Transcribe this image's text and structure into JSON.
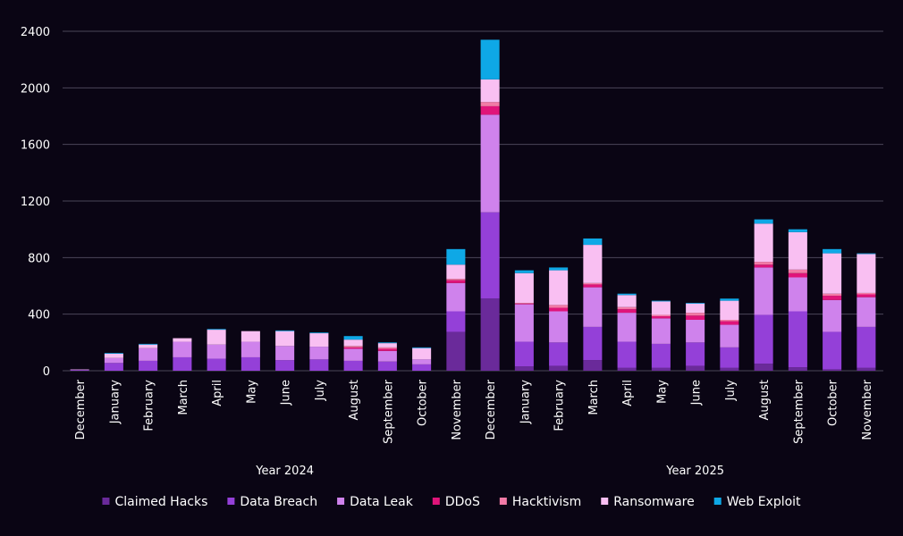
{
  "chart_data": {
    "type": "bar",
    "stacked": true,
    "title": "",
    "xlabel": "",
    "ylabel": "",
    "ylim": [
      0,
      2400
    ],
    "yticks": [
      0,
      400,
      800,
      1200,
      1600,
      2000,
      2400
    ],
    "grid": true,
    "legend_position": "bottom",
    "categories": [
      "December",
      "January",
      "February",
      "March",
      "April",
      "May",
      "June",
      "July",
      "August",
      "September",
      "October",
      "November",
      "December",
      "January",
      "February",
      "March",
      "April",
      "May",
      "June",
      "July",
      "August",
      "September",
      "October",
      "November"
    ],
    "groups": [
      {
        "label": "Year 2024",
        "from": 1,
        "to": 11
      },
      {
        "label": "Year 2025",
        "from": 13,
        "to": 23
      }
    ],
    "series": [
      {
        "name": "Claimed Hacks",
        "color": "#6a2a9a",
        "values": [
          0,
          0,
          0,
          0,
          0,
          0,
          0,
          0,
          0,
          0,
          0,
          275,
          510,
          30,
          35,
          75,
          20,
          20,
          35,
          20,
          50,
          25,
          10,
          20
        ]
      },
      {
        "name": "Data Breach",
        "color": "#9440d8",
        "values": [
          5,
          55,
          70,
          95,
          85,
          95,
          75,
          80,
          70,
          65,
          45,
          145,
          610,
          175,
          165,
          235,
          185,
          170,
          165,
          145,
          345,
          395,
          265,
          290
        ]
      },
      {
        "name": "Data Leak",
        "color": "#cf82ec",
        "values": [
          3,
          35,
          90,
          110,
          100,
          110,
          100,
          90,
          85,
          75,
          35,
          200,
          690,
          265,
          220,
          280,
          205,
          180,
          160,
          160,
          335,
          240,
          225,
          210
        ]
      },
      {
        "name": "DDoS",
        "color": "#e0147a",
        "values": [
          0,
          0,
          0,
          0,
          0,
          0,
          0,
          0,
          10,
          15,
          0,
          20,
          60,
          5,
          25,
          20,
          25,
          15,
          30,
          25,
          20,
          30,
          30,
          20
        ]
      },
      {
        "name": "Hacktivism",
        "color": "#f27aa6",
        "values": [
          0,
          0,
          0,
          0,
          0,
          0,
          0,
          0,
          10,
          10,
          0,
          10,
          30,
          5,
          20,
          10,
          15,
          10,
          20,
          10,
          20,
          25,
          15,
          10
        ]
      },
      {
        "name": "Ransomware",
        "color": "#f9bff2",
        "values": [
          2,
          30,
          25,
          25,
          105,
          75,
          105,
          95,
          45,
          30,
          80,
          100,
          160,
          210,
          245,
          270,
          85,
          95,
          65,
          135,
          270,
          265,
          285,
          275
        ]
      },
      {
        "name": "Web Exploit",
        "color": "#0ea8e6",
        "values": [
          0,
          5,
          5,
          0,
          5,
          0,
          5,
          5,
          25,
          5,
          5,
          110,
          280,
          20,
          20,
          45,
          10,
          5,
          5,
          15,
          30,
          20,
          30,
          5
        ]
      }
    ]
  }
}
